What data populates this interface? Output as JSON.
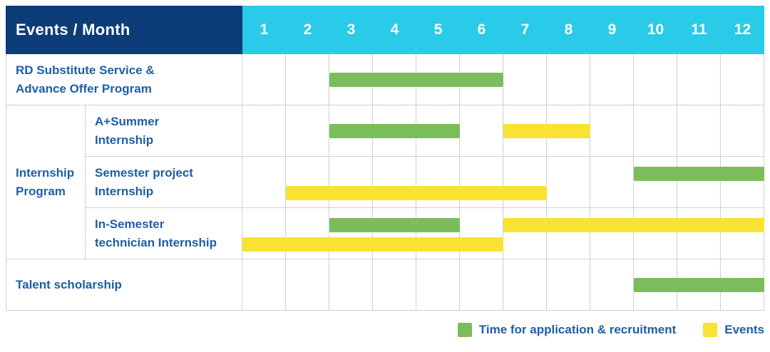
{
  "header": {
    "title": "Events / Month",
    "months": [
      "1",
      "2",
      "3",
      "4",
      "5",
      "6",
      "7",
      "8",
      "9",
      "10",
      "11",
      "12"
    ]
  },
  "colors": {
    "header_bg": "#0d3d78",
    "months_header_bg": "#29cbe8",
    "label_text": "#1e5ea8",
    "application_green": "#7cbd5b",
    "events_yellow": "#f9e232",
    "grid_line": "#cdd0d4",
    "background": "#ffffff"
  },
  "groups": [
    {
      "label": "Internship Program",
      "label_lines": [
        "Internship",
        "Program"
      ]
    }
  ],
  "rows": [
    {
      "label": "RD Substitute Service & Advance Offer Program",
      "label_lines": [
        "RD Substitute Service &",
        "Advance Offer Program"
      ],
      "group": null,
      "bars": [
        {
          "kind": "application",
          "start_month": 3,
          "end_month": 6,
          "line": "center"
        }
      ]
    },
    {
      "label": "A+Summer Internship",
      "label_lines": [
        "A+Summer",
        "Internship"
      ],
      "group": "Internship Program",
      "bars": [
        {
          "kind": "application",
          "start_month": 3,
          "end_month": 5,
          "line": "center"
        },
        {
          "kind": "events",
          "start_month": 7,
          "end_month": 8,
          "line": "center"
        }
      ]
    },
    {
      "label": "Semester project Internship",
      "label_lines": [
        "Semester project",
        "Internship"
      ],
      "group": "Internship Program",
      "bars": [
        {
          "kind": "application",
          "start_month": 10,
          "end_month": 12,
          "line": "top"
        },
        {
          "kind": "events",
          "start_month": 2,
          "end_month": 7,
          "line": "bottom"
        }
      ]
    },
    {
      "label": "In-Semester technician Internship",
      "label_lines": [
        "In-Semester",
        "technician Internship"
      ],
      "group": "Internship Program",
      "bars": [
        {
          "kind": "application",
          "start_month": 3,
          "end_month": 5,
          "line": "top"
        },
        {
          "kind": "events",
          "start_month": 7,
          "end_month": 12,
          "line": "top"
        },
        {
          "kind": "events",
          "start_month": 1,
          "end_month": 6,
          "line": "bottom"
        }
      ]
    },
    {
      "label": "Talent scholarship",
      "label_lines": [
        "Talent scholarship"
      ],
      "group": null,
      "bars": [
        {
          "kind": "application",
          "start_month": 10,
          "end_month": 12,
          "line": "center"
        }
      ]
    }
  ],
  "legend": {
    "items": [
      {
        "swatch": "application",
        "label": "Time for application & recruitment"
      },
      {
        "swatch": "events",
        "label": "Events"
      }
    ]
  },
  "chart_data": {
    "type": "bar",
    "subtype": "gantt-timeline",
    "title": "Events / Month",
    "x_axis": {
      "label": "Month",
      "ticks": [
        1,
        2,
        3,
        4,
        5,
        6,
        7,
        8,
        9,
        10,
        11,
        12
      ],
      "range": [
        1,
        12
      ]
    },
    "grid": true,
    "legend_position": "bottom-right",
    "series": [
      {
        "name": "Time for application & recruitment",
        "color": "#7cbd5b"
      },
      {
        "name": "Events",
        "color": "#f9e232"
      }
    ],
    "tasks": [
      {
        "row": "RD Substitute Service & Advance Offer Program",
        "group": null,
        "bars": [
          {
            "series": "Time for application & recruitment",
            "start_month": 3,
            "end_month": 6
          }
        ]
      },
      {
        "row": "A+Summer Internship",
        "group": "Internship Program",
        "bars": [
          {
            "series": "Time for application & recruitment",
            "start_month": 3,
            "end_month": 5
          },
          {
            "series": "Events",
            "start_month": 7,
            "end_month": 8
          }
        ]
      },
      {
        "row": "Semester project Internship",
        "group": "Internship Program",
        "bars": [
          {
            "series": "Time for application & recruitment",
            "start_month": 10,
            "end_month": 12
          },
          {
            "series": "Events",
            "start_month": 2,
            "end_month": 7
          }
        ]
      },
      {
        "row": "In-Semester technician Internship",
        "group": "Internship Program",
        "bars": [
          {
            "series": "Time for application & recruitment",
            "start_month": 3,
            "end_month": 5
          },
          {
            "series": "Events",
            "start_month": 7,
            "end_month": 12
          },
          {
            "series": "Events",
            "start_month": 1,
            "end_month": 6
          }
        ]
      },
      {
        "row": "Talent scholarship",
        "group": null,
        "bars": [
          {
            "series": "Time for application & recruitment",
            "start_month": 10,
            "end_month": 12
          }
        ]
      }
    ]
  }
}
